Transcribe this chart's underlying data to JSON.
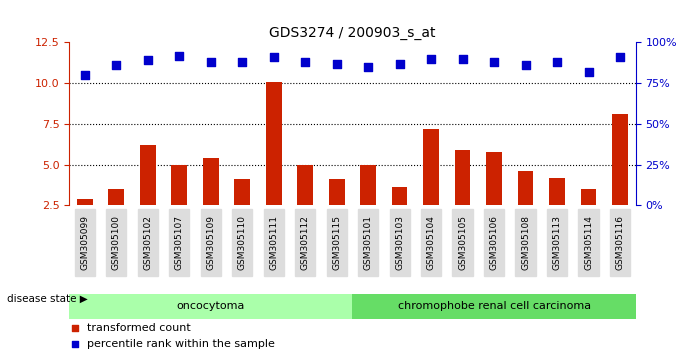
{
  "title": "GDS3274 / 200903_s_at",
  "samples": [
    "GSM305099",
    "GSM305100",
    "GSM305102",
    "GSM305107",
    "GSM305109",
    "GSM305110",
    "GSM305111",
    "GSM305112",
    "GSM305115",
    "GSM305101",
    "GSM305103",
    "GSM305104",
    "GSM305105",
    "GSM305106",
    "GSM305108",
    "GSM305113",
    "GSM305114",
    "GSM305116"
  ],
  "transformed_count": [
    2.9,
    3.5,
    6.2,
    5.0,
    5.4,
    4.1,
    10.1,
    5.0,
    4.1,
    5.0,
    3.6,
    7.2,
    5.9,
    5.8,
    4.6,
    4.2,
    3.5,
    8.1
  ],
  "percentile_rank": [
    10.5,
    11.1,
    11.4,
    11.7,
    11.3,
    11.3,
    11.6,
    11.3,
    11.2,
    11.0,
    11.2,
    11.5,
    11.5,
    11.3,
    11.1,
    11.3,
    10.7,
    11.6
  ],
  "oncocytoma_count": 9,
  "chromophobe_count": 9,
  "bar_color": "#cc2200",
  "dot_color": "#0000cc",
  "oncocytoma_color": "#aaffaa",
  "chromophobe_color": "#66dd66",
  "ylim_left": [
    2.5,
    12.5
  ],
  "ylim_right": [
    0,
    100
  ],
  "yticks_left": [
    2.5,
    5.0,
    7.5,
    10.0,
    12.5
  ],
  "yticks_right": [
    0,
    25,
    50,
    75,
    100
  ],
  "ytick_labels_right": [
    "0%",
    "25%",
    "50%",
    "75%",
    "100%"
  ],
  "hlines": [
    5.0,
    7.5,
    10.0
  ],
  "background_color": "#ffffff",
  "tick_area_color": "#dddddd"
}
